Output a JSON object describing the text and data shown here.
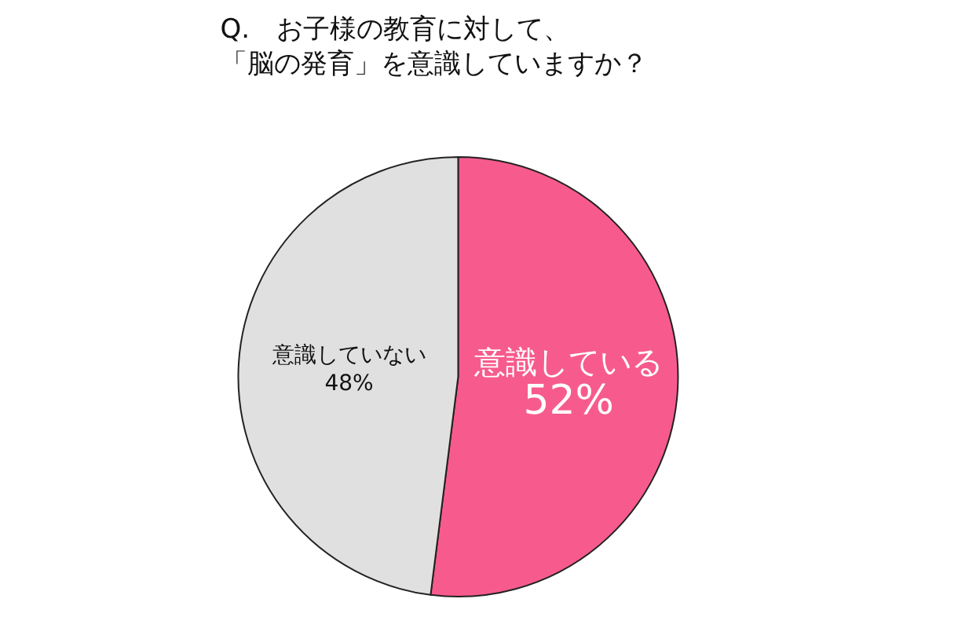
{
  "chart_data": {
    "type": "pie",
    "title": "Q.　お子様の教育に対して、「脳の発育」を意識していますか？",
    "categories": [
      "意識している",
      "意識していない"
    ],
    "values": [
      52,
      48
    ],
    "colors": [
      "#f75b8d",
      "#e0e0e0"
    ],
    "value_labels": [
      "52%",
      "48%"
    ],
    "legend": false
  }
}
